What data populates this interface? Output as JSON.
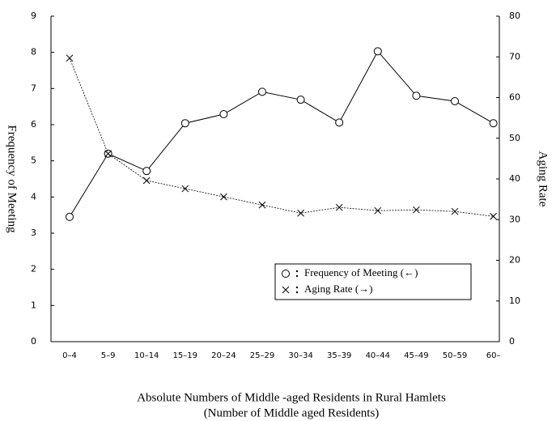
{
  "chart_data": {
    "type": "line",
    "xlabel": "Absolute Numbers of Middle -aged  Residents in Rural  Hamlets",
    "xlabel_sub": "(Number of Middle aged Residents)",
    "ylabel": "Frequency of Meeting",
    "y2label": "Aging Rate",
    "categories": [
      "0–4",
      "5–9",
      "10–14",
      "15–19",
      "20–24",
      "25–29",
      "30–34",
      "35–39",
      "40–44",
      "45–49",
      "50–59",
      "60–"
    ],
    "series": [
      {
        "name": "Frequency of Meeting (←)",
        "color": "#000000",
        "marker": "circle",
        "axis": "y",
        "values": [
          3.45,
          5.2,
          4.72,
          6.04,
          6.29,
          6.91,
          6.69,
          6.06,
          8.03,
          6.8,
          6.65,
          6.04
        ]
      },
      {
        "name": "Aging Rate (→)",
        "color": "#000000",
        "marker": "cross",
        "axis": "y2",
        "dashed": true,
        "values": [
          69.7,
          46.2,
          39.6,
          37.6,
          35.6,
          33.6,
          31.6,
          33.0,
          32.2,
          32.4,
          32.0,
          30.8
        ]
      }
    ],
    "ylim": [
      0,
      9
    ],
    "yticks": [
      0,
      1,
      2,
      3,
      4,
      5,
      6,
      7,
      8,
      9
    ],
    "y2lim": [
      0,
      80
    ],
    "y2ticks": [
      0,
      10,
      20,
      30,
      40,
      50,
      60,
      70,
      80
    ],
    "legend": "lower right",
    "grid": false
  }
}
